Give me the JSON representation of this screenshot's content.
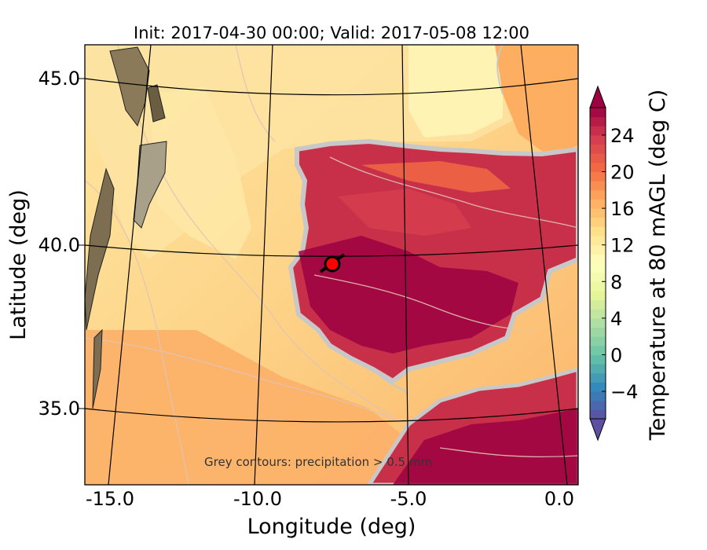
{
  "title": "Init: 2017-04-30 00:00; Valid: 2017-05-08 12:00",
  "axes": {
    "xlabel": "Longitude (deg)",
    "ylabel": "Latitude (deg)",
    "xticks": [
      "-15.0",
      "-10.0",
      "-5.0",
      "0.0"
    ],
    "yticks": [
      "45.0",
      "40.0",
      "35.0"
    ]
  },
  "colorbar": {
    "label": "Temperature at 80 mAGL (deg C)",
    "ticks": [
      "−4",
      "0",
      "4",
      "8",
      "12",
      "16",
      "20",
      "24"
    ],
    "tick_values": [
      -4,
      0,
      4,
      8,
      12,
      16,
      20,
      24
    ],
    "range": [
      -7,
      27
    ],
    "colormap": [
      "#5e4fa2",
      "#3288bd",
      "#66c2a5",
      "#abdda4",
      "#e6f598",
      "#ffffbf",
      "#fee08b",
      "#fdae61",
      "#f46d43",
      "#d53e4f",
      "#9e0142"
    ]
  },
  "annotation": "Grey contours: precipitation > 0.5 mm",
  "marker": {
    "lon": -7.6,
    "lat": 39.4,
    "color": "#ff0000"
  },
  "map": {
    "ocean_color": "#fdc97a",
    "land_color": "#c8304a",
    "hot_color": "#9e0142",
    "precip_contour_color": "#c8c8c8",
    "terrain_color": "#8a7a5a"
  }
}
